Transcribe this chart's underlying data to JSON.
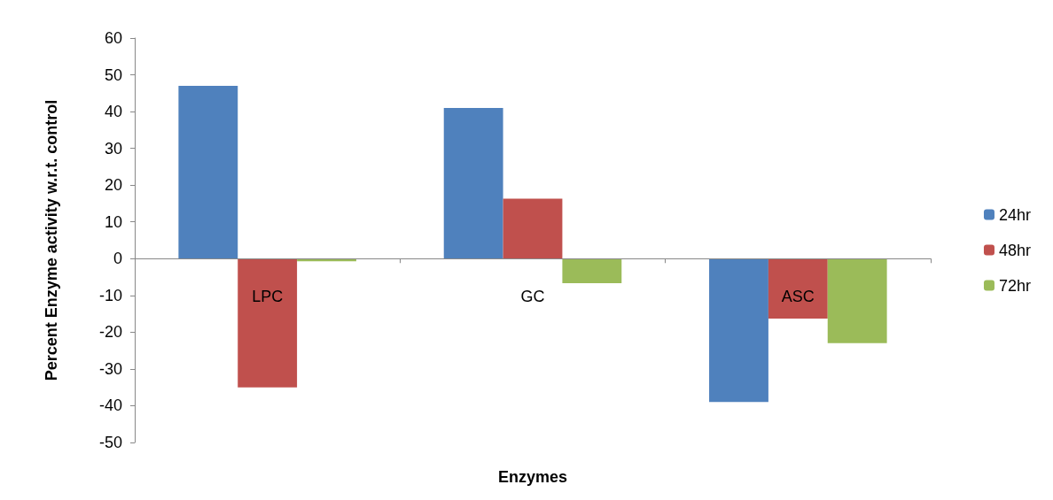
{
  "chart_data": {
    "type": "bar",
    "xlabel": "Enzymes",
    "ylabel": "Percent Enzyme activity w.r.t. control",
    "categories": [
      "LPC",
      "GC",
      "ASC"
    ],
    "series": [
      {
        "name": "24hr",
        "color": "#4f81bd",
        "values": [
          47,
          41,
          -39
        ]
      },
      {
        "name": "48hr",
        "color": "#c0504d",
        "values": [
          -35,
          16.3,
          -16.3
        ]
      },
      {
        "name": "72hr",
        "color": "#9bbb59",
        "values": [
          -0.7,
          -6.7,
          -23
        ]
      }
    ],
    "ylim": [
      -50,
      60
    ],
    "yticks": [
      -50,
      -40,
      -30,
      -20,
      -10,
      0,
      10,
      20,
      30,
      40,
      50,
      60
    ],
    "grid": false,
    "legend": "right"
  }
}
